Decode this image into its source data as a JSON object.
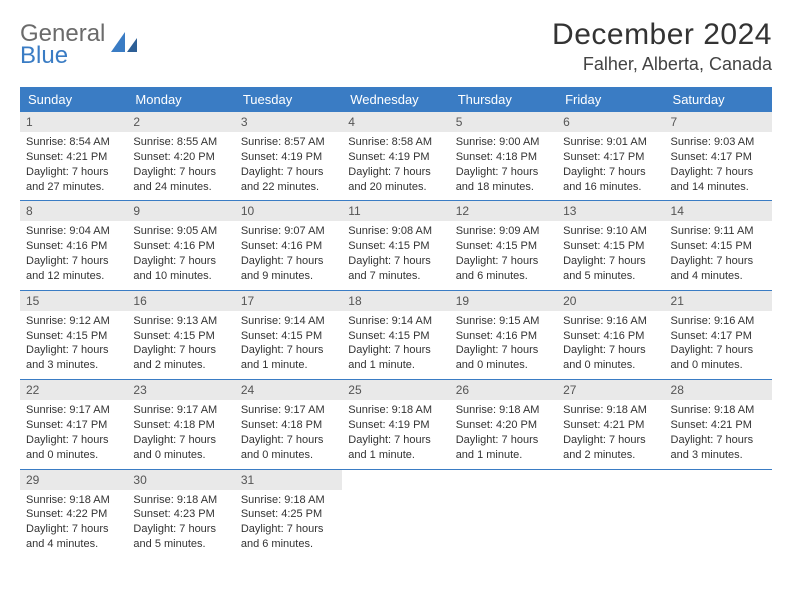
{
  "logo": {
    "line1": "General",
    "line2": "Blue"
  },
  "title": "December 2024",
  "location": "Falher, Alberta, Canada",
  "calendar": {
    "type": "table",
    "header_bg": "#3a7cc4",
    "header_fg": "#ffffff",
    "daynum_bg": "#e9e9e9",
    "border_color": "#3a7cc4",
    "columns": [
      "Sunday",
      "Monday",
      "Tuesday",
      "Wednesday",
      "Thursday",
      "Friday",
      "Saturday"
    ],
    "weeks": [
      [
        {
          "n": "1",
          "sr": "8:54 AM",
          "ss": "4:21 PM",
          "dl": "7 hours and 27 minutes."
        },
        {
          "n": "2",
          "sr": "8:55 AM",
          "ss": "4:20 PM",
          "dl": "7 hours and 24 minutes."
        },
        {
          "n": "3",
          "sr": "8:57 AM",
          "ss": "4:19 PM",
          "dl": "7 hours and 22 minutes."
        },
        {
          "n": "4",
          "sr": "8:58 AM",
          "ss": "4:19 PM",
          "dl": "7 hours and 20 minutes."
        },
        {
          "n": "5",
          "sr": "9:00 AM",
          "ss": "4:18 PM",
          "dl": "7 hours and 18 minutes."
        },
        {
          "n": "6",
          "sr": "9:01 AM",
          "ss": "4:17 PM",
          "dl": "7 hours and 16 minutes."
        },
        {
          "n": "7",
          "sr": "9:03 AM",
          "ss": "4:17 PM",
          "dl": "7 hours and 14 minutes."
        }
      ],
      [
        {
          "n": "8",
          "sr": "9:04 AM",
          "ss": "4:16 PM",
          "dl": "7 hours and 12 minutes."
        },
        {
          "n": "9",
          "sr": "9:05 AM",
          "ss": "4:16 PM",
          "dl": "7 hours and 10 minutes."
        },
        {
          "n": "10",
          "sr": "9:07 AM",
          "ss": "4:16 PM",
          "dl": "7 hours and 9 minutes."
        },
        {
          "n": "11",
          "sr": "9:08 AM",
          "ss": "4:15 PM",
          "dl": "7 hours and 7 minutes."
        },
        {
          "n": "12",
          "sr": "9:09 AM",
          "ss": "4:15 PM",
          "dl": "7 hours and 6 minutes."
        },
        {
          "n": "13",
          "sr": "9:10 AM",
          "ss": "4:15 PM",
          "dl": "7 hours and 5 minutes."
        },
        {
          "n": "14",
          "sr": "9:11 AM",
          "ss": "4:15 PM",
          "dl": "7 hours and 4 minutes."
        }
      ],
      [
        {
          "n": "15",
          "sr": "9:12 AM",
          "ss": "4:15 PM",
          "dl": "7 hours and 3 minutes."
        },
        {
          "n": "16",
          "sr": "9:13 AM",
          "ss": "4:15 PM",
          "dl": "7 hours and 2 minutes."
        },
        {
          "n": "17",
          "sr": "9:14 AM",
          "ss": "4:15 PM",
          "dl": "7 hours and 1 minute."
        },
        {
          "n": "18",
          "sr": "9:14 AM",
          "ss": "4:15 PM",
          "dl": "7 hours and 1 minute."
        },
        {
          "n": "19",
          "sr": "9:15 AM",
          "ss": "4:16 PM",
          "dl": "7 hours and 0 minutes."
        },
        {
          "n": "20",
          "sr": "9:16 AM",
          "ss": "4:16 PM",
          "dl": "7 hours and 0 minutes."
        },
        {
          "n": "21",
          "sr": "9:16 AM",
          "ss": "4:17 PM",
          "dl": "7 hours and 0 minutes."
        }
      ],
      [
        {
          "n": "22",
          "sr": "9:17 AM",
          "ss": "4:17 PM",
          "dl": "7 hours and 0 minutes."
        },
        {
          "n": "23",
          "sr": "9:17 AM",
          "ss": "4:18 PM",
          "dl": "7 hours and 0 minutes."
        },
        {
          "n": "24",
          "sr": "9:17 AM",
          "ss": "4:18 PM",
          "dl": "7 hours and 0 minutes."
        },
        {
          "n": "25",
          "sr": "9:18 AM",
          "ss": "4:19 PM",
          "dl": "7 hours and 1 minute."
        },
        {
          "n": "26",
          "sr": "9:18 AM",
          "ss": "4:20 PM",
          "dl": "7 hours and 1 minute."
        },
        {
          "n": "27",
          "sr": "9:18 AM",
          "ss": "4:21 PM",
          "dl": "7 hours and 2 minutes."
        },
        {
          "n": "28",
          "sr": "9:18 AM",
          "ss": "4:21 PM",
          "dl": "7 hours and 3 minutes."
        }
      ],
      [
        {
          "n": "29",
          "sr": "9:18 AM",
          "ss": "4:22 PM",
          "dl": "7 hours and 4 minutes."
        },
        {
          "n": "30",
          "sr": "9:18 AM",
          "ss": "4:23 PM",
          "dl": "7 hours and 5 minutes."
        },
        {
          "n": "31",
          "sr": "9:18 AM",
          "ss": "4:25 PM",
          "dl": "7 hours and 6 minutes."
        },
        null,
        null,
        null,
        null
      ]
    ]
  }
}
